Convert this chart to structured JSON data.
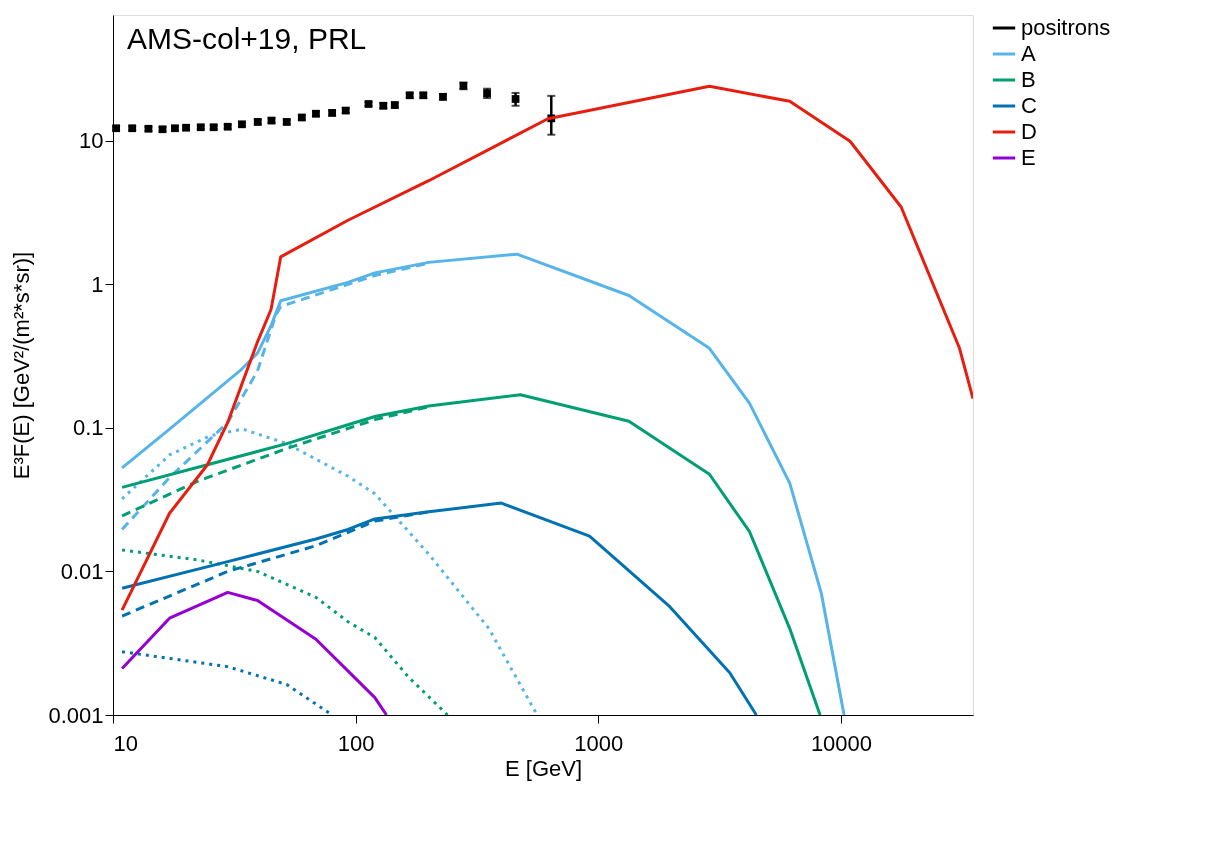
{
  "chart_data": {
    "type": "line",
    "annotations": [
      "AMS-col+19, PRL"
    ],
    "xlabel": "E [GeV]",
    "ylabel": "E³F(E) [GeV²/(m²*s*sr)]",
    "log": "xy",
    "xlim": [
      10,
      35000
    ],
    "ylim": [
      0.001,
      75
    ],
    "xticks": [
      10,
      100,
      1000,
      10000
    ],
    "yticks": [
      0.001,
      0.01,
      0.1,
      1,
      10
    ],
    "legend": "right",
    "series": [
      {
        "name": "positrons",
        "type": "scatter",
        "marker": "square",
        "color": "#000000",
        "x": [
          10.3,
          12,
          14,
          16,
          18,
          20,
          23,
          26,
          29.7,
          34,
          39.5,
          45,
          52,
          60,
          68.6,
          80,
          91,
          113,
          130,
          145,
          167,
          190,
          229,
          278,
          348,
          456,
          640
        ],
        "values": [
          12.2,
          12.2,
          12.1,
          12.0,
          12.2,
          12.3,
          12.4,
          12.4,
          12.5,
          13.0,
          13.5,
          13.8,
          13.5,
          14.5,
          15.4,
          15.6,
          16.2,
          18.0,
          17.5,
          17.7,
          20.7,
          20.7,
          20.2,
          24.1,
          21.4,
          19.5,
          14.3
        ],
        "errors": [
          0.4,
          0.4,
          0.4,
          0.4,
          0.4,
          0.4,
          0.4,
          0.4,
          0.4,
          0.4,
          0.5,
          0.5,
          0.5,
          0.5,
          0.6,
          0.6,
          0.6,
          0.6,
          0.7,
          0.7,
          0.8,
          0.8,
          0.9,
          1.3,
          1.6,
          2.0,
          [
            11,
            20.5
          ]
        ]
      },
      {
        "name": "A",
        "color": "#56b4e9",
        "line_style": "solid",
        "x": [
          10.9,
          17.1,
          33.3,
          39.4,
          44.8,
          49.1,
          93,
          120,
          200,
          462,
          1337,
          2870,
          4200,
          6150,
          8300,
          10300
        ],
        "values": [
          0.0526,
          0.098,
          0.249,
          0.331,
          0.515,
          0.767,
          1.03,
          1.2,
          1.42,
          1.62,
          0.835,
          0.358,
          0.148,
          0.0412,
          0.00703,
          0.001
        ]
      },
      {
        "color": "#56b4e9",
        "line_style": "dashed",
        "x": [
          10.9,
          17.1,
          29.7,
          39.4,
          46.7,
          49.1,
          120,
          200
        ],
        "values": [
          0.0196,
          0.045,
          0.109,
          0.249,
          0.6,
          0.7,
          1.15,
          1.4
        ]
      },
      {
        "color": "#56b4e9",
        "line_style": "dotted",
        "x": [
          10.9,
          17.1,
          25.1,
          34.2,
          52,
          93,
          120,
          200,
          354,
          560
        ],
        "values": [
          0.032,
          0.0647,
          0.088,
          0.098,
          0.0776,
          0.046,
          0.0347,
          0.0132,
          0.004,
          0.001
        ]
      },
      {
        "name": "B",
        "color": "#009e73",
        "line_style": "solid",
        "x": [
          10.9,
          24.5,
          52,
          93,
          120,
          200,
          477,
          1337,
          2870,
          4200,
          6150,
          8200
        ],
        "values": [
          0.0385,
          0.0553,
          0.0776,
          0.105,
          0.12,
          0.142,
          0.17,
          0.111,
          0.0475,
          0.0189,
          0.004,
          0.001
        ]
      },
      {
        "color": "#009e73",
        "line_style": "dashed",
        "x": [
          10.9,
          22.5,
          52,
          120,
          200
        ],
        "values": [
          0.0244,
          0.0427,
          0.0718,
          0.114,
          0.14
        ]
      },
      {
        "color": "#009e73",
        "line_style": "dotted",
        "x": [
          10.9,
          22.5,
          39.4,
          68.6,
          93,
          120,
          165,
          239
        ],
        "values": [
          0.0141,
          0.012,
          0.01,
          0.0066,
          0.00446,
          0.00346,
          0.00184,
          0.001
        ]
      },
      {
        "name": "C",
        "color": "#0072b2",
        "line_style": "solid",
        "x": [
          10.9,
          29.7,
          68.6,
          93,
          120,
          200,
          398,
          920,
          1970,
          3480,
          4480
        ],
        "values": [
          0.00764,
          0.0117,
          0.0168,
          0.0196,
          0.0232,
          0.026,
          0.0299,
          0.0176,
          0.00568,
          0.00197,
          0.001
        ]
      },
      {
        "color": "#0072b2",
        "line_style": "dashed",
        "x": [
          10.9,
          29.7,
          68.6,
          120,
          200
        ],
        "values": [
          0.00489,
          0.01,
          0.0151,
          0.0224,
          0.026
        ]
      },
      {
        "color": "#0072b2",
        "line_style": "dotted",
        "x": [
          10.9,
          29.7,
          52,
          80
        ],
        "values": [
          0.00276,
          0.00217,
          0.00163,
          0.001
        ]
      },
      {
        "name": "D",
        "color": "#e51e10",
        "line_style": "solid",
        "x": [
          10.9,
          17.1,
          24.5,
          29.7,
          39.4,
          44.8,
          49.1,
          93,
          200,
          620,
          2870,
          6150,
          10900,
          17700,
          30800,
          35000
        ],
        "values": [
          0.00537,
          0.0254,
          0.0553,
          0.109,
          0.397,
          0.667,
          1.55,
          2.79,
          5.26,
          14.2,
          23.9,
          18.8,
          9.9,
          3.45,
          0.358,
          0.16
        ]
      },
      {
        "name": "E",
        "color": "#9400d3",
        "line_style": "solid",
        "x": [
          10.9,
          17.1,
          29.7,
          39.4,
          68.6,
          120,
          134
        ],
        "values": [
          0.00211,
          0.00472,
          0.00714,
          0.00627,
          0.00337,
          0.00132,
          0.001
        ]
      }
    ]
  }
}
